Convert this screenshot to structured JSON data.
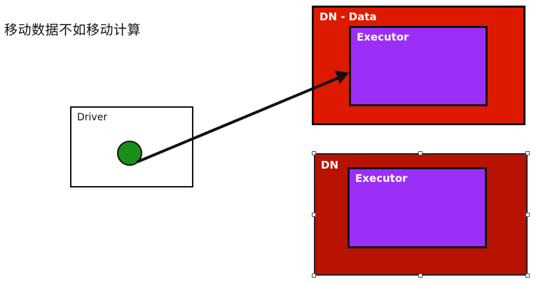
{
  "title": "移动数据不如移动计算",
  "colors": {
    "driver_dot": "#1a8f1a",
    "dn_data": "#dd1a00",
    "dn": "#b81200",
    "executor": "#9b2ff7",
    "arrow": "#111111"
  },
  "driver": {
    "label": "Driver"
  },
  "nodes": [
    {
      "label": "DN - Data",
      "executor_label": "Executor"
    },
    {
      "label": "DN",
      "executor_label": "Executor"
    }
  ]
}
